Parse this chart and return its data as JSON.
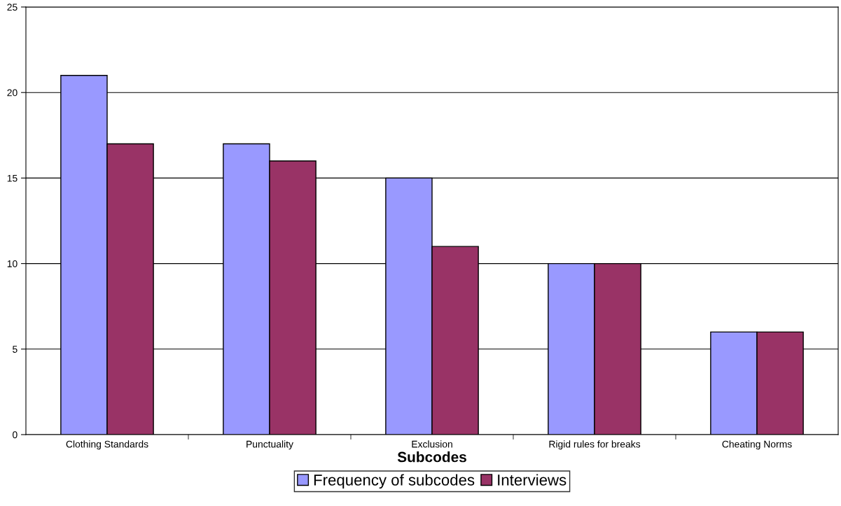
{
  "chart_data": {
    "type": "bar",
    "xlabel": "Subcodes",
    "categories": [
      "Clothing Standards",
      "Punctuality",
      "Exclusion",
      "Rigid rules for breaks",
      "Cheating Norms"
    ],
    "series": [
      {
        "name": "Frequency of subcodes",
        "color": "#9999ff",
        "values": [
          21,
          17,
          15,
          10,
          6
        ]
      },
      {
        "name": "Interviews",
        "color": "#993366",
        "values": [
          17,
          16,
          11,
          10,
          6
        ]
      }
    ],
    "ylim": [
      0,
      25
    ],
    "yticks": [
      0,
      5,
      10,
      15,
      20,
      25
    ],
    "grid": "y",
    "legend": "bottom"
  }
}
